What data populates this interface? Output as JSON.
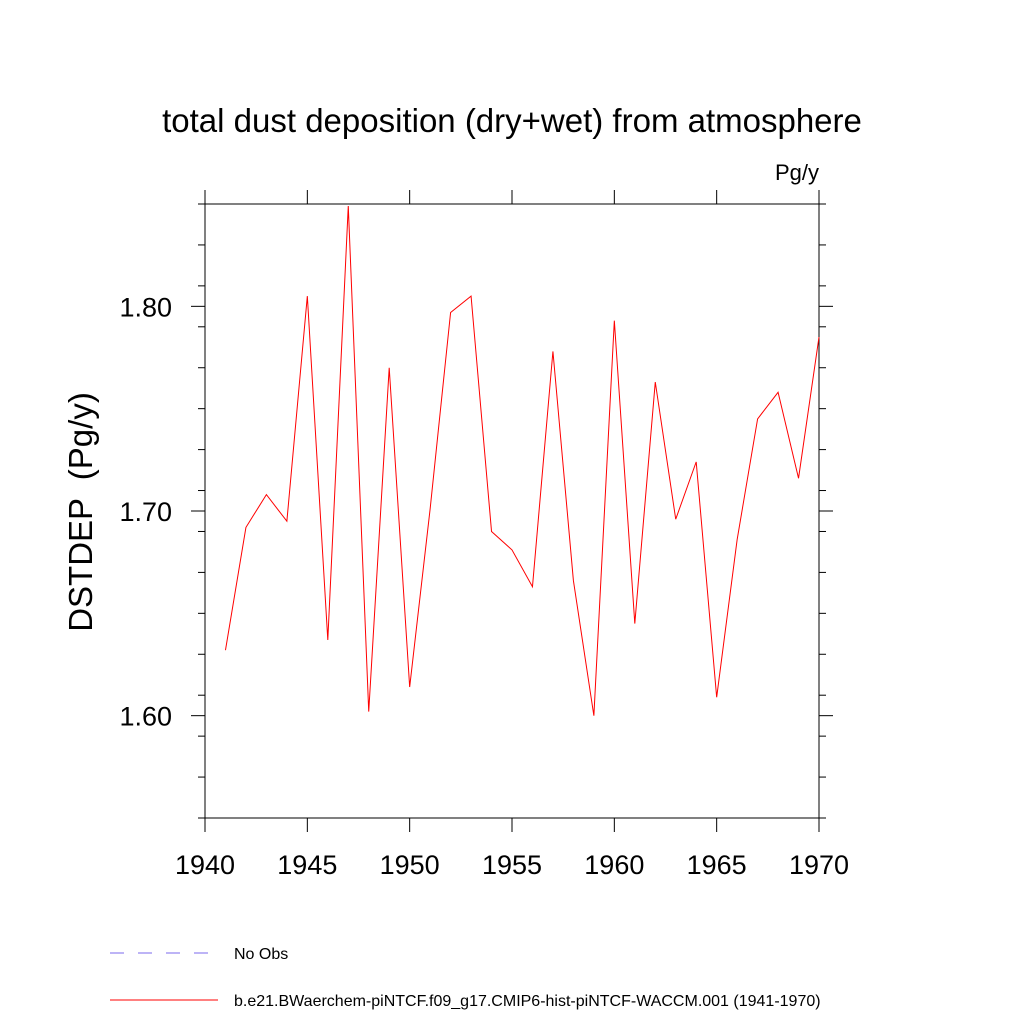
{
  "chart_data": {
    "type": "line",
    "title": "total dust deposition (dry+wet) from atmosphere",
    "units_label": "Pg/y",
    "xlabel": "",
    "ylabel": "DSTDEP  (Pg/y)",
    "xlim": [
      1940,
      1970
    ],
    "ylim": [
      1.55,
      1.85
    ],
    "x_ticks": [
      1940,
      1945,
      1950,
      1955,
      1960,
      1965,
      1970
    ],
    "x_tick_labels": [
      "1940",
      "1945",
      "1950",
      "1955",
      "1960",
      "1965",
      "1970"
    ],
    "y_ticks": [
      1.6,
      1.7,
      1.8
    ],
    "y_tick_labels": [
      "1.60",
      "1.70",
      "1.80"
    ],
    "grid": false,
    "legend_position": "bottom-left",
    "series": [
      {
        "name": "b.e21.BWaerchem-piNTCF.f09_g17.CMIP6-hist-piNTCF-WACCM.001 (1941-1970)",
        "color": "#ff0000",
        "style": "solid",
        "x": [
          1941,
          1942,
          1943,
          1944,
          1945,
          1946,
          1947,
          1948,
          1949,
          1950,
          1951,
          1952,
          1953,
          1954,
          1955,
          1956,
          1957,
          1958,
          1959,
          1960,
          1961,
          1962,
          1963,
          1964,
          1965,
          1966,
          1967,
          1968,
          1969,
          1970
        ],
        "y": [
          1.632,
          1.692,
          1.708,
          1.695,
          1.805,
          1.637,
          1.849,
          1.602,
          1.77,
          1.614,
          1.701,
          1.797,
          1.805,
          1.69,
          1.681,
          1.663,
          1.778,
          1.666,
          1.6,
          1.793,
          1.645,
          1.763,
          1.696,
          1.724,
          1.609,
          1.686,
          1.745,
          1.758,
          1.716,
          1.785
        ]
      }
    ],
    "legend_items": [
      {
        "label": "No Obs",
        "color": "#7b68ee",
        "style": "dashed"
      },
      {
        "label": "b.e21.BWaerchem-piNTCF.f09_g17.CMIP6-hist-piNTCF-WACCM.001 (1941-1970)",
        "color": "#ff0000",
        "style": "solid"
      }
    ]
  }
}
